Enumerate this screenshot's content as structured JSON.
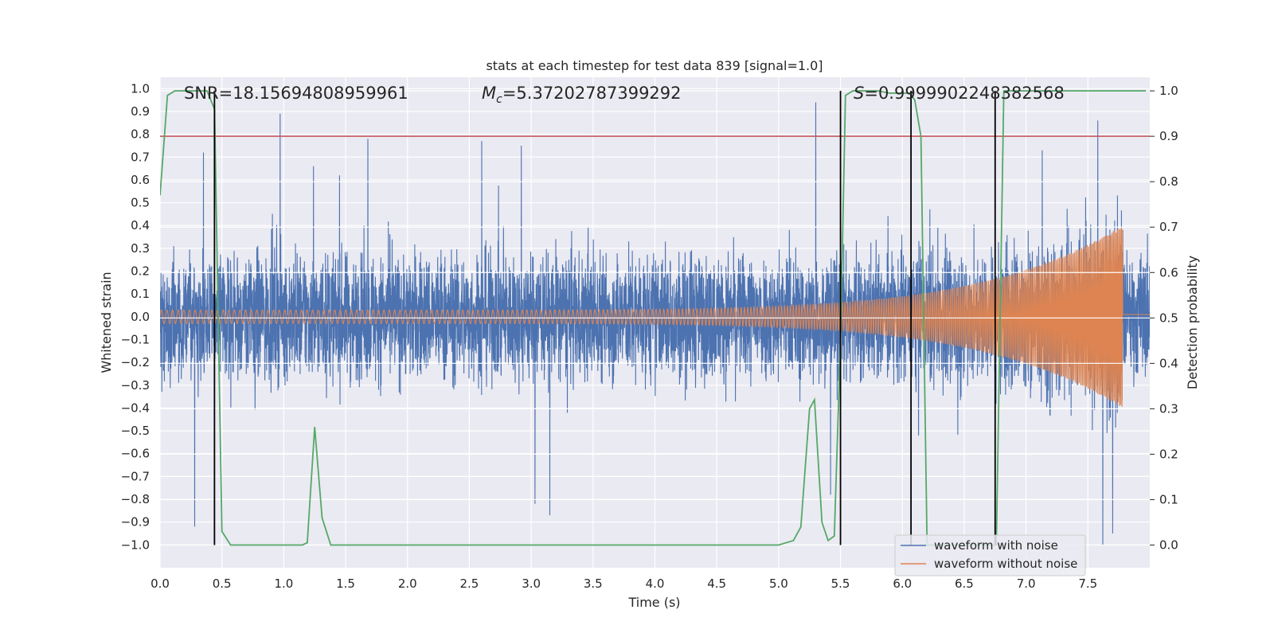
{
  "chart_data": {
    "type": "line",
    "title": "stats at each timestep for test data 839 [signal=1.0]",
    "xlabel": "Time (s)",
    "ylabel": "Whitened strain",
    "ylabel_right": "Detection probability",
    "xlim": [
      0.0,
      8.0
    ],
    "ylim": [
      -1.1,
      1.05
    ],
    "ylim_right": [
      -0.05,
      1.03
    ],
    "grid": true,
    "x_ticks": [
      "0.0",
      "0.5",
      "1.0",
      "1.5",
      "2.0",
      "2.5",
      "3.0",
      "3.5",
      "4.0",
      "4.5",
      "5.0",
      "5.5",
      "6.0",
      "6.5",
      "7.0",
      "7.5"
    ],
    "y_ticks": [
      "1.0",
      "0.9",
      "0.8",
      "0.7",
      "0.6",
      "0.5",
      "0.4",
      "0.3",
      "0.2",
      "0.1",
      "0.0",
      "−0.1",
      "−0.2",
      "−0.3",
      "−0.4",
      "−0.5",
      "−0.6",
      "−0.7",
      "−0.8",
      "−0.9",
      "−1.0"
    ],
    "y_ticks_right": [
      "1.0",
      "0.9",
      "0.8",
      "0.7",
      "0.6",
      "0.5",
      "0.4",
      "0.3",
      "0.2",
      "0.1",
      "0.0"
    ],
    "annotations": {
      "snr": "SNR=18.15694808959961",
      "mc_symbol": "M",
      "mc_sub": "c",
      "mc_value": "=5.37202787399292",
      "s_symbol": "S",
      "s_value": "=0.9999902248382568"
    },
    "legend": {
      "placement": "lower-right",
      "entries": [
        {
          "name": "waveform with noise",
          "color": "#4c72b0"
        },
        {
          "name": "waveform without noise",
          "color": "#dd8452"
        }
      ]
    },
    "series": [
      {
        "name": "waveform with noise",
        "color": "#4c72b0",
        "axis": "left",
        "noise_band": [
          -0.4,
          0.4
        ],
        "peaks": [
          {
            "x": 0.28,
            "y": -0.92
          },
          {
            "x": 0.35,
            "y": 0.72
          },
          {
            "x": 0.97,
            "y": 0.89
          },
          {
            "x": 1.24,
            "y": 0.66
          },
          {
            "x": 1.68,
            "y": 0.78
          },
          {
            "x": 2.6,
            "y": 0.77
          },
          {
            "x": 2.92,
            "y": 0.75
          },
          {
            "x": 3.15,
            "y": -0.87
          },
          {
            "x": 5.3,
            "y": 0.94
          },
          {
            "x": 5.42,
            "y": -0.78
          },
          {
            "x": 7.13,
            "y": 0.73
          },
          {
            "x": 7.58,
            "y": 0.86
          },
          {
            "x": 7.62,
            "y": -1.0
          },
          {
            "x": 7.7,
            "y": -0.95
          },
          {
            "x": 3.03,
            "y": -0.82
          },
          {
            "x": 1.45,
            "y": 0.62
          }
        ]
      },
      {
        "name": "waveform without noise",
        "color": "#dd8452",
        "axis": "left",
        "chirp": {
          "start_amplitude": 0.03,
          "peak_amplitude": 0.4,
          "merger_time": 7.78,
          "start_frequency": 22,
          "end_frequency": 95
        },
        "post_merger_value": 0.01
      },
      {
        "color": "#55a868",
        "axis": "right",
        "x": [
          0.0,
          0.06,
          0.12,
          0.38,
          0.44,
          0.5,
          0.57,
          0.8,
          1.0,
          1.15,
          1.19,
          1.25,
          1.31,
          1.38,
          2.0,
          3.0,
          4.0,
          5.0,
          5.12,
          5.18,
          5.25,
          5.29,
          5.35,
          5.4,
          5.45,
          5.5,
          5.54,
          5.6,
          5.8,
          5.9,
          6.06,
          6.1,
          6.15,
          6.2,
          6.23,
          6.5,
          6.73,
          6.76,
          6.82,
          7.0,
          7.5,
          7.97
        ],
        "y": [
          0.77,
          0.99,
          1.0,
          1.0,
          0.96,
          0.03,
          0.0,
          0.0,
          0.0,
          0.0,
          0.005,
          0.26,
          0.06,
          0.0,
          0.0,
          0.0,
          0.0,
          0.0,
          0.01,
          0.04,
          0.3,
          0.32,
          0.05,
          0.01,
          0.02,
          0.45,
          0.99,
          1.0,
          1.0,
          0.995,
          0.995,
          0.98,
          0.9,
          0.0,
          0.0,
          0.0,
          0.0,
          0.0,
          1.0,
          1.0,
          1.0,
          1.0
        ]
      }
    ],
    "threshold": {
      "value": 0.9,
      "axis": "right",
      "color": "#c44e52"
    },
    "vlines": [
      0.44,
      5.5,
      6.07,
      6.75
    ]
  }
}
